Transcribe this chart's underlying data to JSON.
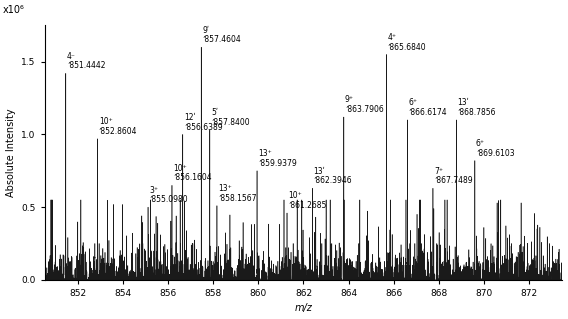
{
  "title": "",
  "xlabel": "m/z",
  "ylabel": "Absolute Intensity",
  "xmin": 850.5,
  "xmax": 873.5,
  "ymin": 0.0,
  "ymax": 1.75,
  "xticks": [
    852,
    854,
    856,
    858,
    860,
    862,
    864,
    866,
    868,
    870,
    872
  ],
  "yticks": [
    0.0,
    0.5,
    1.0,
    1.5
  ],
  "scale_label": "x10⁶",
  "annotations": [
    {
      "ion": "4⁻",
      "mz_str": "ʼ851.4442",
      "x": 851.4442,
      "height": 1.42,
      "xoff": 0.0
    },
    {
      "ion": "10⁺",
      "mz_str": "ʼ852.8604",
      "x": 852.8604,
      "height": 0.97,
      "xoff": 0.0
    },
    {
      "ion": "3⁺",
      "mz_str": "ʼ855.0980",
      "x": 855.098,
      "height": 0.5,
      "xoff": 0.0
    },
    {
      "ion": "10⁺",
      "mz_str": "ʼ856.1604",
      "x": 856.1604,
      "height": 0.65,
      "xoff": 0.0
    },
    {
      "ion": "12ʹ",
      "mz_str": "ʼ856.6389",
      "x": 856.6389,
      "height": 1.0,
      "xoff": 0.0
    },
    {
      "ion": "9ʹ",
      "mz_str": "ʼ857.4604",
      "x": 857.4604,
      "height": 1.6,
      "xoff": 0.0
    },
    {
      "ion": "5ʹ",
      "mz_str": "ʼ857.8400",
      "x": 857.84,
      "height": 1.03,
      "xoff": 0.0
    },
    {
      "ion": "13⁺",
      "mz_str": "ʼ858.1567",
      "x": 858.1567,
      "height": 0.51,
      "xoff": 0.0
    },
    {
      "ion": "13⁺",
      "mz_str": "ʼ859.9379",
      "x": 859.9379,
      "height": 0.75,
      "xoff": 0.0
    },
    {
      "ion": "10⁺",
      "mz_str": "ʼ861.2685",
      "x": 861.2685,
      "height": 0.46,
      "xoff": 0.0
    },
    {
      "ion": "13ʹ",
      "mz_str": "ʼ862.3946",
      "x": 862.3946,
      "height": 0.63,
      "xoff": 0.0
    },
    {
      "ion": "9⁺",
      "mz_str": "ʼ863.7906",
      "x": 863.7906,
      "height": 1.12,
      "xoff": 0.0
    },
    {
      "ion": "4⁺",
      "mz_str": "ʼ865.6840",
      "x": 865.684,
      "height": 1.55,
      "xoff": 0.0
    },
    {
      "ion": "6⁺",
      "mz_str": "ʼ866.6174",
      "x": 866.6174,
      "height": 1.1,
      "xoff": 0.0
    },
    {
      "ion": "7⁺",
      "mz_str": "ʼ867.7489",
      "x": 867.7489,
      "height": 0.63,
      "xoff": 0.0
    },
    {
      "ion": "13ʹ",
      "mz_str": "ʼ868.7856",
      "x": 868.7856,
      "height": 1.1,
      "xoff": 0.0
    },
    {
      "ion": "6⁺",
      "mz_str": "ʼ869.6103",
      "x": 869.6103,
      "height": 0.82,
      "xoff": 0.0
    }
  ],
  "background_color": "#ffffff",
  "peak_color": "#1a1a1a"
}
